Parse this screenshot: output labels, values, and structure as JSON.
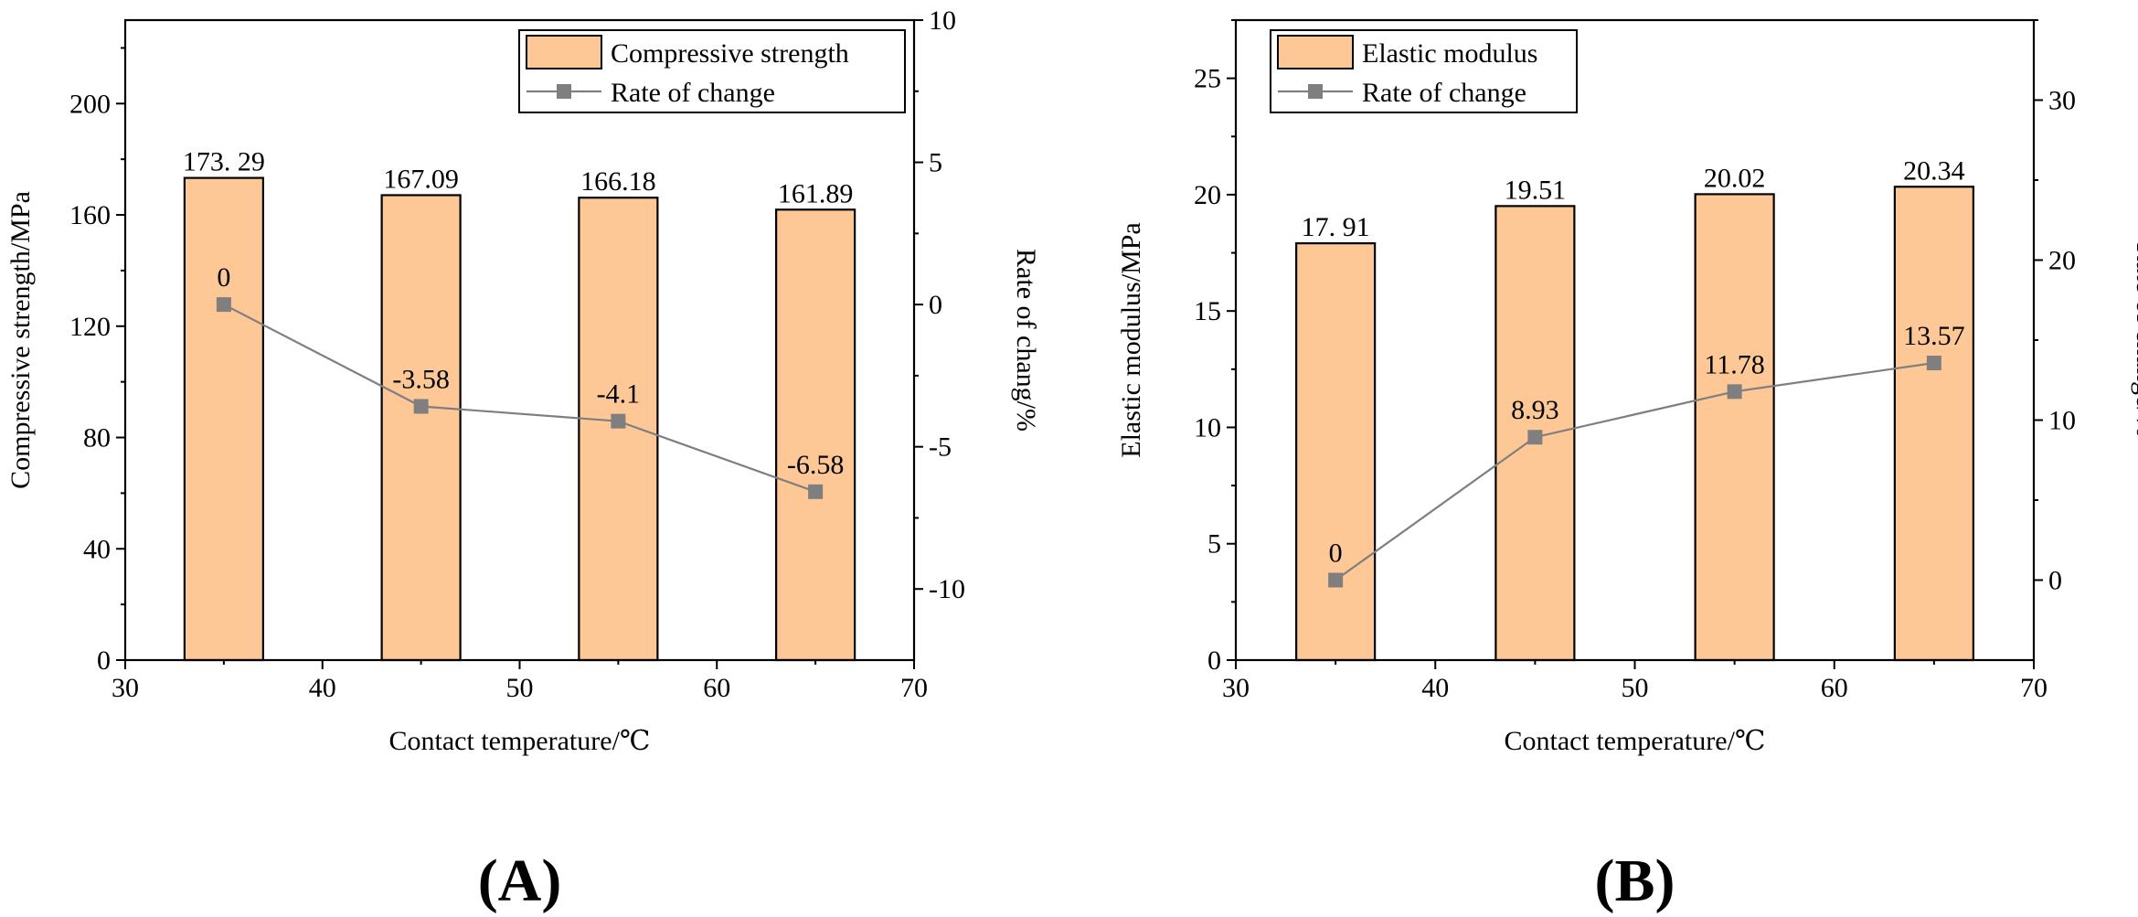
{
  "chart_data": [
    {
      "panel": "(A)",
      "type": "bar+line",
      "xlabel": "Contact temperature/℃",
      "ylabel_left": "Compressive strength/MPa",
      "ylabel_right": "Rate of chang/%",
      "xlim": [
        30,
        70
      ],
      "xticks": [
        30,
        40,
        50,
        60,
        70
      ],
      "ylim_left": [
        0,
        230
      ],
      "yticks_left": [
        0,
        40,
        80,
        120,
        160,
        200
      ],
      "ylim_right": [
        -12.5,
        10
      ],
      "yticks_right": [
        -10,
        -5,
        0,
        5,
        10
      ],
      "x": [
        35,
        45,
        55,
        65
      ],
      "bar_series": {
        "name": "Compressive strength",
        "values": [
          173.29,
          167.09,
          166.18,
          161.89
        ],
        "labels": [
          "173. 29",
          "167.09",
          "166.18",
          "161.89"
        ],
        "label_colors": [
          "#ff0000",
          "#000000",
          "#000000",
          "#000000"
        ]
      },
      "line_series": {
        "name": "Rate of change",
        "values": [
          0,
          -3.58,
          -4.1,
          -6.58
        ],
        "labels": [
          "0",
          "-3.58",
          "-4.1",
          "-6.58"
        ]
      },
      "legend": [
        "Compressive strength",
        "Rate of change"
      ],
      "legend_position": "top-right"
    },
    {
      "panel": "(B)",
      "type": "bar+line",
      "xlabel": "Contact temperature/℃",
      "ylabel_left": "Elastic modulus/MPa",
      "ylabel_right": "Rate of change/%",
      "xlim": [
        30,
        70
      ],
      "xticks": [
        30,
        40,
        50,
        60,
        70
      ],
      "ylim_left": [
        0,
        27.5
      ],
      "yticks_left": [
        0,
        5,
        10,
        15,
        20,
        25
      ],
      "ylim_right": [
        -5,
        35
      ],
      "yticks_right": [
        0,
        10,
        20,
        30
      ],
      "x": [
        35,
        45,
        55,
        65
      ],
      "bar_series": {
        "name": "Elastic modulus",
        "values": [
          17.91,
          19.51,
          20.02,
          20.34
        ],
        "labels": [
          "17. 91",
          "19.51",
          "20.02",
          "20.34"
        ],
        "label_colors": [
          "#ff0000",
          "#000000",
          "#000000",
          "#000000"
        ]
      },
      "line_series": {
        "name": "Rate of change",
        "values": [
          0,
          8.93,
          11.78,
          13.57
        ],
        "labels": [
          "0",
          "8.93",
          "11.78",
          "13.57"
        ]
      },
      "legend": [
        "Elastic modulus",
        "Rate of change"
      ],
      "legend_position": "top-left"
    }
  ],
  "colors": {
    "bar_fill": "#fec896",
    "bar_stroke": "#000000",
    "line": "#7f7f7f",
    "marker": "#7f7f7f",
    "axis": "#000000"
  }
}
